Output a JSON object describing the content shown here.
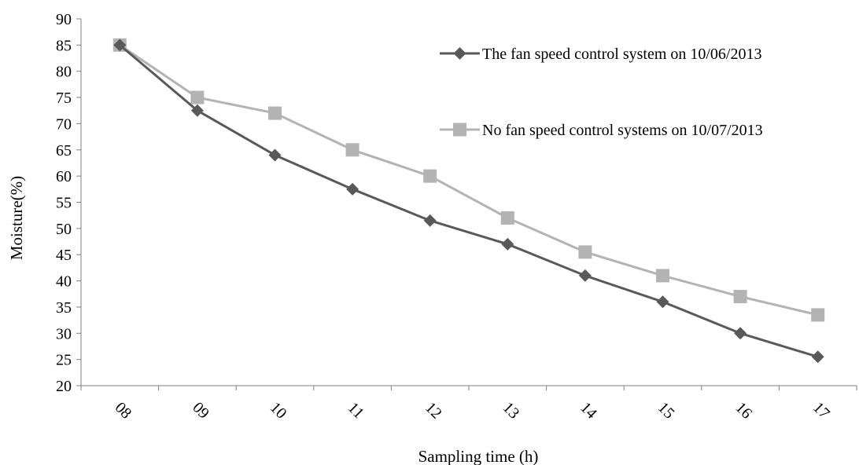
{
  "chart_data": {
    "type": "line",
    "title": "",
    "xlabel": "Sampling time  (h)",
    "ylabel": "Moisture(%)",
    "ylim": [
      20,
      90
    ],
    "ytick_step": 5,
    "yticks": [
      "20",
      "25",
      "30",
      "35",
      "40",
      "45",
      "50",
      "55",
      "60",
      "65",
      "70",
      "75",
      "80",
      "85",
      "90"
    ],
    "categories": [
      "08",
      "09",
      "10",
      "11",
      "12",
      "13",
      "14",
      "15",
      "16",
      "17"
    ],
    "grid": false,
    "legend_position": "top-right",
    "series": [
      {
        "name": "The fan speed control system on 10/06/2013",
        "marker": "diamond",
        "color": "#595959",
        "values": [
          85,
          72.5,
          64,
          57.5,
          51.5,
          47,
          41,
          36,
          30,
          25.5
        ]
      },
      {
        "name": "No fan speed control systems on 10/07/2013",
        "marker": "square",
        "color": "#B3B3B3",
        "values": [
          85,
          75,
          72,
          65,
          60,
          52,
          45.5,
          41,
          37,
          33.5
        ]
      }
    ]
  }
}
